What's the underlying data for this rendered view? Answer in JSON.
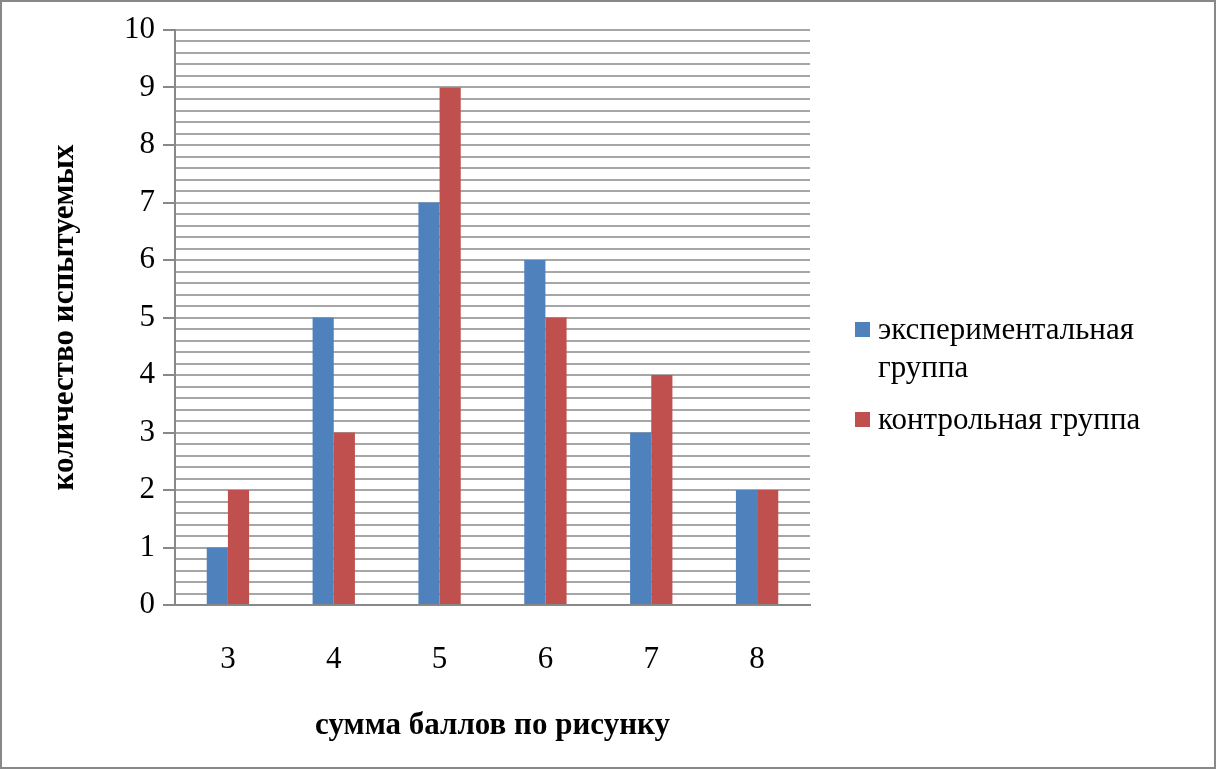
{
  "chart_data": {
    "type": "bar",
    "xlabel": "сумма баллов по рисунку",
    "ylabel": "количество испытуемых",
    "categories": [
      "3",
      "4",
      "5",
      "6",
      "7",
      "8"
    ],
    "series": [
      {
        "name": "экспериментальная группа",
        "color": "#4f81bd",
        "values": [
          1,
          5,
          7,
          6,
          3,
          2
        ]
      },
      {
        "name": "контрольная группа",
        "color": "#c0504d",
        "values": [
          2,
          3,
          9,
          5,
          4,
          2
        ]
      }
    ],
    "ylim": [
      0,
      10
    ],
    "yticks": [
      0,
      {
        "value": 0.2,
        "label": null
      },
      {
        "value": 0.4,
        "label": null
      },
      {
        "value": 0.6,
        "label": null
      },
      {
        "value": 0.8,
        "label": null
      },
      1,
      {
        "value": 1.2,
        "label": null
      },
      {
        "value": 1.4,
        "label": null
      },
      {
        "value": 1.6,
        "label": null
      },
      {
        "value": 1.8,
        "label": null
      },
      2,
      {
        "value": 2.2,
        "label": null
      },
      {
        "value": 2.4,
        "label": null
      },
      {
        "value": 2.6,
        "label": null
      },
      {
        "value": 2.8,
        "label": null
      },
      3,
      {
        "value": 3.2,
        "label": null
      },
      {
        "value": 3.4,
        "label": null
      },
      {
        "value": 3.6,
        "label": null
      },
      {
        "value": 3.8,
        "label": null
      },
      4,
      {
        "value": 4.2,
        "label": null
      },
      {
        "value": 4.4,
        "label": null
      },
      {
        "value": 4.6,
        "label": null
      },
      {
        "value": 4.8,
        "label": null
      },
      5,
      {
        "value": 5.2,
        "label": null
      },
      {
        "value": 5.4,
        "label": null
      },
      {
        "value": 5.6,
        "label": null
      },
      {
        "value": 5.8,
        "label": null
      },
      6,
      {
        "value": 6.2,
        "label": null
      },
      {
        "value": 6.4,
        "label": null
      },
      {
        "value": 6.6,
        "label": null
      },
      {
        "value": 6.8,
        "label": null
      },
      7,
      {
        "value": 7.2,
        "label": null
      },
      {
        "value": 7.4,
        "label": null
      },
      {
        "value": 7.6,
        "label": null
      },
      {
        "value": 7.8,
        "label": null
      },
      8,
      {
        "value": 8.2,
        "label": null
      },
      {
        "value": 8.4,
        "label": null
      },
      {
        "value": 8.6,
        "label": null
      },
      {
        "value": 8.8,
        "label": null
      },
      9,
      {
        "value": 9.2,
        "label": null
      },
      {
        "value": 9.4,
        "label": null
      },
      {
        "value": 9.6,
        "label": null
      },
      {
        "value": 9.8,
        "label": null
      },
      10
    ],
    "grid": "y",
    "legend": "right"
  }
}
